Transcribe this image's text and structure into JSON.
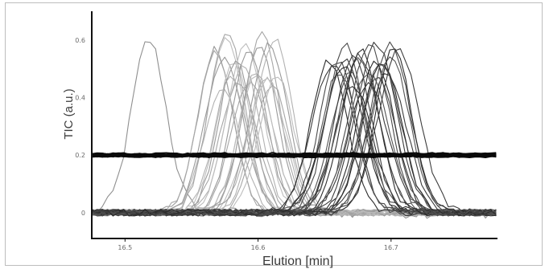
{
  "chart_data": {
    "type": "line",
    "title": "",
    "xlabel": "Elution [min]",
    "ylabel": "TIC (a.u.)",
    "xlim": [
      16.475,
      16.78
    ],
    "ylim": [
      -0.09,
      0.7
    ],
    "x_ticks": [
      16.5,
      16.6,
      16.7
    ],
    "x_tick_labels": [
      "16.5",
      "16.6",
      "16.7"
    ],
    "y_ticks": [
      0,
      0.2,
      0.4,
      0.6
    ],
    "y_tick_labels": [
      "0",
      "0.2",
      "0.4",
      "0.6"
    ],
    "grid": false,
    "legend": "none",
    "series_groups": [
      {
        "group": "single early trace",
        "color": "#8f8f8f",
        "count": 1,
        "peak_x": [
          16.518
        ],
        "peak_height": 0.6,
        "width": 0.013,
        "baseline_noise": 0.02
      },
      {
        "group": "light-gray peak cluster",
        "color": "#a6a6a6",
        "count": 24,
        "peak_x_range": [
          16.568,
          16.615
        ],
        "peak_height_range": [
          0.43,
          0.64
        ],
        "width": 0.013,
        "baseline_noise": 0.012
      },
      {
        "group": "dark-gray peak cluster",
        "color": "#3c3c3c",
        "count": 26,
        "peak_x_range": [
          16.655,
          16.705
        ],
        "peak_height_range": [
          0.44,
          0.6
        ],
        "width": 0.014,
        "baseline_noise": 0.012
      },
      {
        "group": "flat band",
        "color": "#0a0a0a",
        "count": 18,
        "level": 0.2,
        "spread": 0.012
      }
    ],
    "colors": {
      "light_cluster": "#a6a6a6",
      "dark_cluster": "#3c3c3c",
      "band": "#0a0a0a",
      "early_trace": "#8f8f8f"
    }
  }
}
